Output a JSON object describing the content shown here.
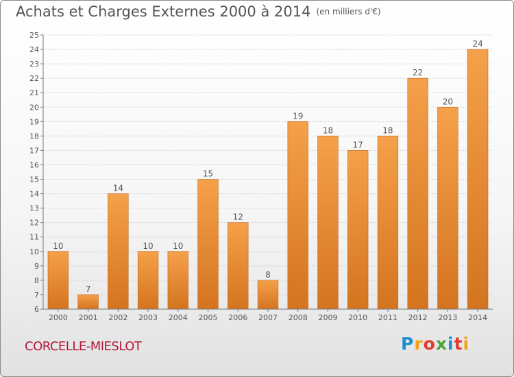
{
  "title": "Achats et Charges Externes 2000 à 2014",
  "subtitle": "(en milliers d'€)",
  "town": "CORCELLE-MIESLOT",
  "logo": {
    "text": "Proxiti",
    "colors": [
      "#1c8ed4",
      "#f0a21a",
      "#e23b2c",
      "#4aa33a",
      "#1c8ed4",
      "#e23b2c",
      "#f0a21a"
    ]
  },
  "colors": {
    "bar_top": "#f5a04a",
    "bar_bottom": "#d4741f",
    "bar_stroke": "#c06515",
    "grid": "#cfcfcf",
    "text": "#555555",
    "town": "#b5173b"
  },
  "chart_data": {
    "type": "bar",
    "categories": [
      "2000",
      "2001",
      "2002",
      "2003",
      "2004",
      "2005",
      "2006",
      "2007",
      "2008",
      "2009",
      "2010",
      "2011",
      "2012",
      "2013",
      "2014"
    ],
    "values": [
      10,
      7,
      14,
      10,
      10,
      15,
      12,
      8,
      19,
      18,
      17,
      18,
      22,
      20,
      24
    ],
    "ylim": [
      6,
      25
    ],
    "yticks": [
      6,
      7,
      8,
      9,
      10,
      11,
      12,
      13,
      14,
      15,
      16,
      17,
      18,
      19,
      20,
      21,
      22,
      23,
      24,
      25
    ],
    "grid": true,
    "xlabel": "",
    "ylabel": ""
  }
}
